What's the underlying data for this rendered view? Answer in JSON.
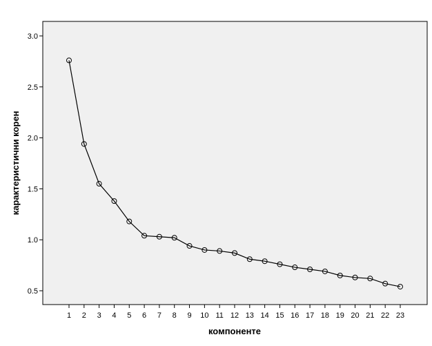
{
  "chart_data": {
    "type": "line",
    "title": "",
    "xlabel": "компоненте",
    "ylabel": "карактеристични корен",
    "x": [
      1,
      2,
      3,
      4,
      5,
      6,
      7,
      8,
      9,
      10,
      11,
      12,
      13,
      14,
      15,
      16,
      17,
      18,
      19,
      20,
      21,
      22,
      23
    ],
    "series": [
      {
        "values": [
          2.76,
          1.94,
          1.55,
          1.38,
          1.18,
          1.04,
          1.03,
          1.02,
          0.94,
          0.9,
          0.89,
          0.87,
          0.81,
          0.79,
          0.76,
          0.73,
          0.71,
          0.69,
          0.65,
          0.63,
          0.62,
          0.57,
          0.54
        ]
      }
    ],
    "ylim": [
      0.3,
      3.1
    ],
    "yticks": [
      "0.5",
      "1.0",
      "1.5",
      "2.0",
      "2.5",
      "3.0"
    ],
    "xticks": [
      "1",
      "2",
      "3",
      "4",
      "5",
      "6",
      "7",
      "8",
      "9",
      "10",
      "11",
      "12",
      "13",
      "14",
      "15",
      "16",
      "17",
      "18",
      "19",
      "20",
      "21",
      "22",
      "23"
    ],
    "grid": false,
    "marker": "open-circle",
    "colors": {
      "plot_background": "#f0f0f0",
      "line": "#000000",
      "axis": "#000000"
    }
  }
}
